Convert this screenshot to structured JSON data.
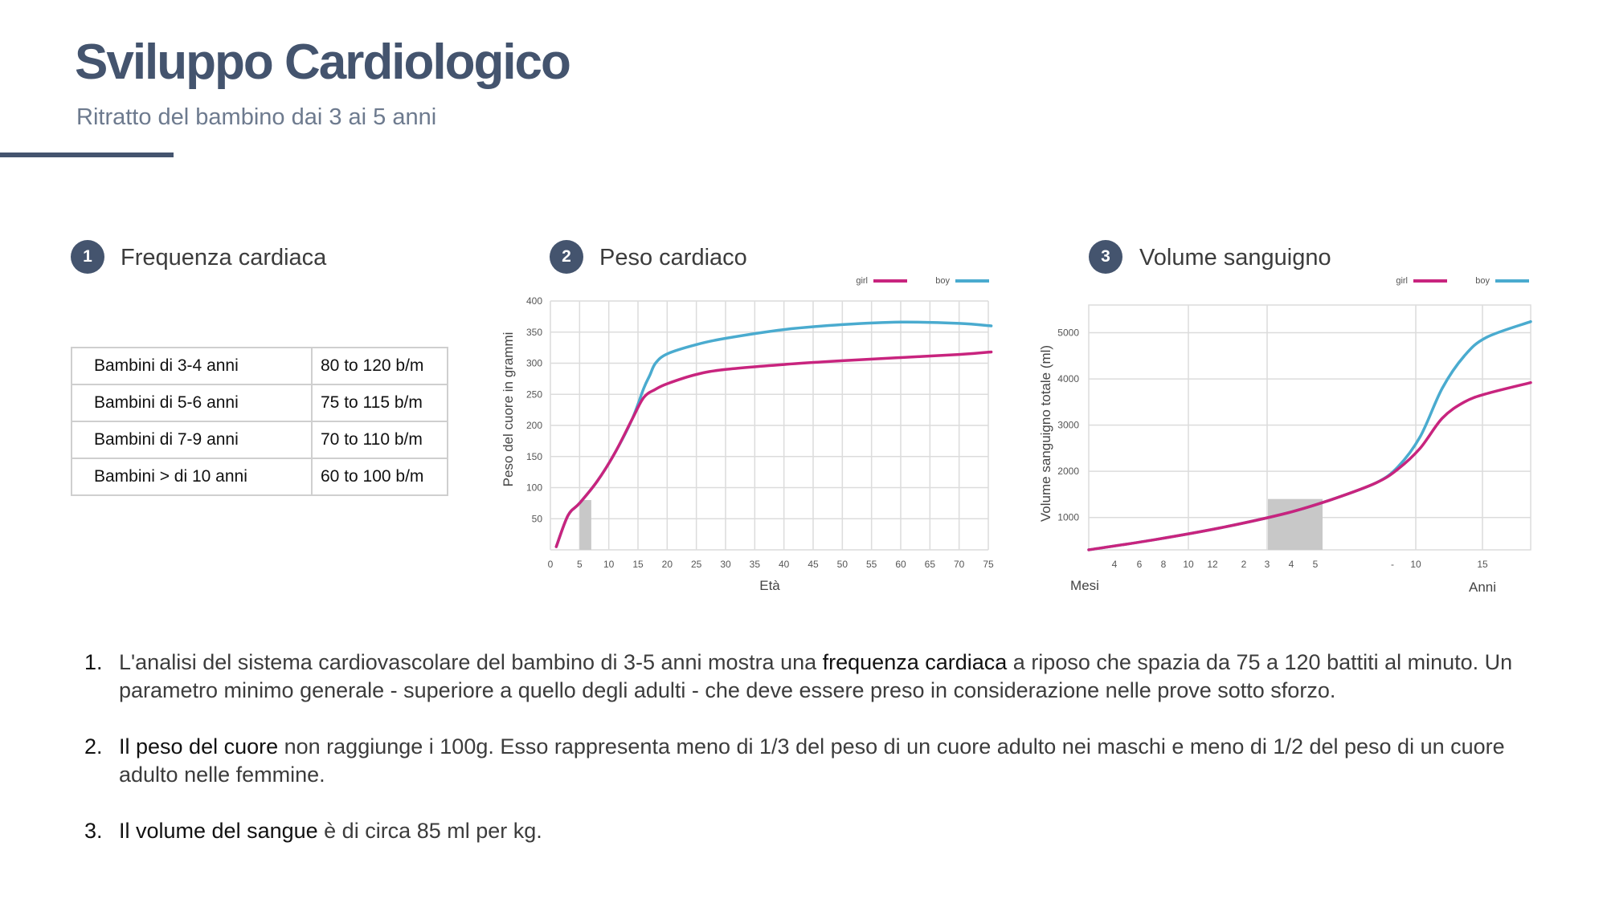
{
  "header": {
    "title": "Sviluppo Cardiologico",
    "subtitle": "Ritratto del bambino dai 3 ai 5 anni"
  },
  "sections": [
    {
      "num": "1",
      "title": "Frequenza cardiaca"
    },
    {
      "num": "2",
      "title": "Peso cardiaco"
    },
    {
      "num": "3",
      "title": "Volume sanguigno"
    }
  ],
  "heart_rate_table": [
    {
      "group": "Bambini di 3-4 anni",
      "range": "80 to 120 b/m"
    },
    {
      "group": "Bambini di 5-6 anni",
      "range": "75 to 115 b/m"
    },
    {
      "group": "Bambini di 7-9 anni",
      "range": "70 to 110 b/m"
    },
    {
      "group": "Bambini > di 10 anni",
      "range": "60 to 100 b/m"
    }
  ],
  "colors": {
    "accent": "#44546e",
    "girl": "#c8247e",
    "boy": "#4aabcf",
    "highlight": "#c8c8c8"
  },
  "chart_data": [
    {
      "type": "line",
      "xlabel": "Età",
      "ylabel": "Peso del cuore in grammi",
      "xlim": [
        0,
        75
      ],
      "ylim": [
        0,
        400
      ],
      "xticks": [
        0,
        5,
        10,
        15,
        20,
        25,
        30,
        35,
        40,
        45,
        50,
        55,
        60,
        65,
        70,
        75
      ],
      "yticks": [
        50,
        100,
        150,
        200,
        250,
        300,
        350,
        400
      ],
      "highlight_x": [
        5,
        7
      ],
      "legend_position": "top-right",
      "series": [
        {
          "name": "girl",
          "x": [
            1,
            3,
            5,
            8,
            11,
            14,
            16,
            18,
            20,
            25,
            30,
            40,
            50,
            60,
            70,
            76
          ],
          "y": [
            5,
            55,
            75,
            110,
            155,
            210,
            245,
            258,
            267,
            282,
            290,
            298,
            304,
            309,
            314,
            318
          ]
        },
        {
          "name": "boy",
          "x": [
            1,
            3,
            5,
            8,
            11,
            14,
            16,
            17,
            18,
            20,
            25,
            30,
            40,
            50,
            60,
            70,
            76
          ],
          "y": [
            5,
            55,
            75,
            110,
            155,
            210,
            260,
            280,
            300,
            315,
            330,
            340,
            354,
            362,
            366,
            364,
            360
          ]
        }
      ]
    },
    {
      "type": "line",
      "xlabel_left": "Mesi",
      "xlabel_right": "Anni",
      "ylabel": "Volume sanguigno totale (ml)",
      "ylim": [
        300,
        5600
      ],
      "xticks": [
        "4",
        "6",
        "8",
        "10",
        "12",
        "2",
        "3",
        "4",
        "5",
        "-",
        "10",
        "15"
      ],
      "yticks": [
        1000,
        2000,
        3000,
        4000,
        5000
      ],
      "highlight_x": [
        "3",
        "5"
      ],
      "legend_position": "top-right",
      "series": [
        {
          "name": "girl",
          "t": [
            0,
            0.15,
            0.3,
            0.45,
            0.55,
            0.65,
            0.7,
            0.75,
            0.8,
            0.85,
            0.9,
            1.0
          ],
          "y": [
            300,
            520,
            780,
            1100,
            1390,
            1750,
            2050,
            2500,
            3150,
            3500,
            3680,
            3920
          ]
        },
        {
          "name": "boy",
          "t": [
            0,
            0.15,
            0.3,
            0.45,
            0.55,
            0.65,
            0.7,
            0.75,
            0.8,
            0.85,
            0.9,
            1.0
          ],
          "y": [
            300,
            520,
            780,
            1100,
            1390,
            1750,
            2100,
            2750,
            3800,
            4500,
            4900,
            5240
          ]
        }
      ]
    }
  ],
  "notes": [
    {
      "num": "1.",
      "pre": "L'analisi del sistema cardiovascolare del bambino di 3-5 anni mostra una ",
      "bold": "frequenza cardiaca",
      "post": " a riposo che spazia da 75 a 120 battiti al minuto. Un parametro minimo generale - superiore a quello degli adulti - che deve essere preso in considerazione nelle prove sotto sforzo."
    },
    {
      "num": "2.",
      "pre": "",
      "bold": "Il peso del cuore",
      "post": " non raggiunge i 100g. Esso rappresenta meno di 1/3 del peso di un cuore adulto nei maschi e meno di 1/2 del peso di un cuore adulto nelle femmine."
    },
    {
      "num": "3.",
      "pre": "",
      "bold": "Il volume del sangue",
      "post": " è di circa 85 ml per kg."
    }
  ]
}
